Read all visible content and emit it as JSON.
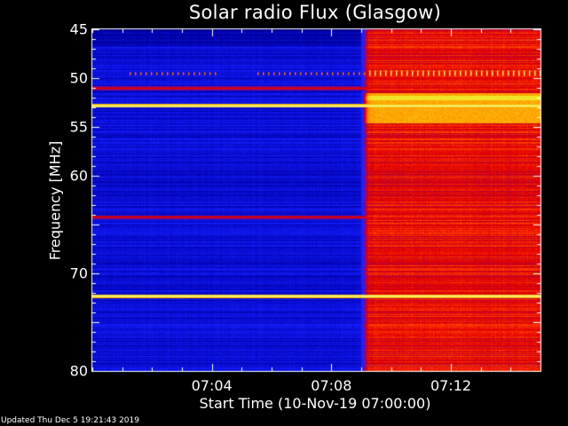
{
  "chart_data": {
    "type": "heatmap",
    "title": "Solar radio Flux (Glasgow)",
    "ylabel": "Frequency [MHz]",
    "xlabel": "Start Time (10-Nov-19 07:00:00)",
    "y_ticks": [
      45,
      50,
      55,
      60,
      65,
      70,
      75,
      80
    ],
    "y_tick_labels": [
      "45",
      "50",
      "55",
      "60",
      "",
      "70",
      "",
      "80"
    ],
    "x_ticks": [
      "07:04",
      "07:08",
      "07:12"
    ],
    "x_tick_minutes": [
      4,
      8,
      12
    ],
    "xlim_minutes": [
      0,
      15
    ],
    "ylim_mhz": [
      45,
      80
    ],
    "y_inverted": true,
    "grid": false,
    "event": {
      "onset_minutes": 9.1,
      "description_colors": [
        "#0000ff",
        "#ff0000",
        "#ffd700"
      ]
    },
    "persistent_bands_mhz": [
      {
        "freq": 51,
        "level": "medium"
      },
      {
        "freq": 52.8,
        "level": "high"
      },
      {
        "freq": 64.2,
        "level": "medium"
      },
      {
        "freq": 72.3,
        "level": "high"
      }
    ],
    "post_onset_bright_band_mhz": [
      52.0,
      54.2
    ],
    "colors": {
      "low": "#00008b",
      "mid": "#0000ff",
      "elevated": "#d40000",
      "high": "#ffff40",
      "peak": "#ffffff"
    }
  },
  "footer": "Updated Thu Dec  5 19:21:43 2019"
}
